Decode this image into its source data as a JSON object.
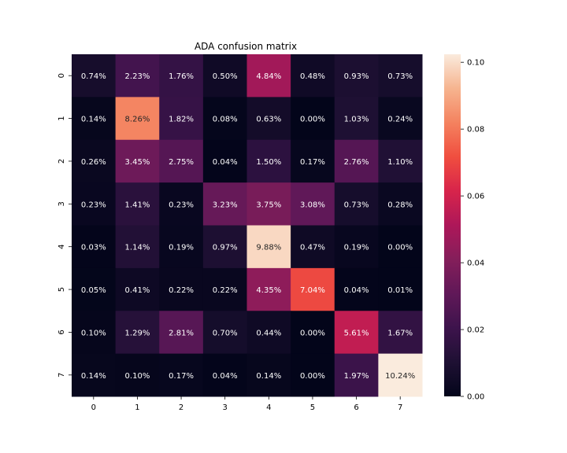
{
  "chart_data": {
    "type": "heatmap",
    "title": "ADA confusion matrix",
    "xlabel": "",
    "ylabel": "",
    "x_categories": [
      "0",
      "1",
      "2",
      "3",
      "4",
      "5",
      "6",
      "7"
    ],
    "y_categories": [
      "0",
      "1",
      "2",
      "3",
      "4",
      "5",
      "6",
      "7"
    ],
    "values": [
      [
        0.0074,
        0.0223,
        0.0176,
        0.005,
        0.0484,
        0.0048,
        0.0093,
        0.0073
      ],
      [
        0.0014,
        0.0826,
        0.0182,
        0.0008,
        0.0063,
        0.0,
        0.0103,
        0.0024
      ],
      [
        0.0026,
        0.0345,
        0.0275,
        0.0004,
        0.015,
        0.0017,
        0.0276,
        0.011
      ],
      [
        0.0023,
        0.0141,
        0.0023,
        0.0323,
        0.0375,
        0.0308,
        0.0073,
        0.0028
      ],
      [
        0.0003,
        0.0114,
        0.0019,
        0.0097,
        0.0988,
        0.0047,
        0.0019,
        0.0
      ],
      [
        0.0005,
        0.0041,
        0.0022,
        0.0022,
        0.0435,
        0.0704,
        0.0004,
        0.0001
      ],
      [
        0.001,
        0.0129,
        0.0281,
        0.007,
        0.0044,
        0.0,
        0.0561,
        0.0167
      ],
      [
        0.0014,
        0.001,
        0.0017,
        0.0004,
        0.0014,
        0.0,
        0.0197,
        0.1024
      ]
    ],
    "cell_labels": [
      [
        "0.74%",
        "2.23%",
        "1.76%",
        "0.50%",
        "4.84%",
        "0.48%",
        "0.93%",
        "0.73%"
      ],
      [
        "0.14%",
        "8.26%",
        "1.82%",
        "0.08%",
        "0.63%",
        "0.00%",
        "1.03%",
        "0.24%"
      ],
      [
        "0.26%",
        "3.45%",
        "2.75%",
        "0.04%",
        "1.50%",
        "0.17%",
        "2.76%",
        "1.10%"
      ],
      [
        "0.23%",
        "1.41%",
        "0.23%",
        "3.23%",
        "3.75%",
        "3.08%",
        "0.73%",
        "0.28%"
      ],
      [
        "0.03%",
        "1.14%",
        "0.19%",
        "0.97%",
        "9.88%",
        "0.47%",
        "0.19%",
        "0.00%"
      ],
      [
        "0.05%",
        "0.41%",
        "0.22%",
        "0.22%",
        "4.35%",
        "7.04%",
        "0.04%",
        "0.01%"
      ],
      [
        "0.10%",
        "1.29%",
        "2.81%",
        "0.70%",
        "0.44%",
        "0.00%",
        "5.61%",
        "1.67%"
      ],
      [
        "0.14%",
        "0.10%",
        "0.17%",
        "0.04%",
        "0.14%",
        "0.00%",
        "1.97%",
        "10.24%"
      ]
    ],
    "colorbar": {
      "colormap": "rocket",
      "vmin": 0.0,
      "vmax": 0.1024,
      "ticks": [
        "0.00",
        "0.02",
        "0.04",
        "0.06",
        "0.08",
        "0.10"
      ],
      "tick_values": [
        0.0,
        0.02,
        0.04,
        0.06,
        0.08,
        0.1
      ]
    },
    "grid": false,
    "legend": "colorbar-right"
  }
}
